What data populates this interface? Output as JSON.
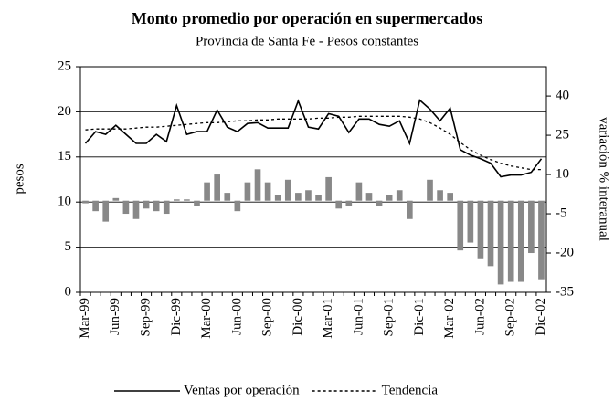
{
  "chart_data": {
    "type": "bar_line",
    "title": "Monto promedio por operación en supermercados",
    "subtitle": "Provincia de Santa Fe - Pesos constantes",
    "y_label": "pesos",
    "y2_label": "variación % interanual",
    "categories": [
      "Mar-99",
      null,
      null,
      "Jun-99",
      null,
      null,
      "Sep-99",
      null,
      null,
      "Dic-99",
      null,
      null,
      "Mar-00",
      null,
      null,
      "Jun-00",
      null,
      null,
      "Sep-00",
      null,
      null,
      "Dic-00",
      null,
      null,
      "Mar-01",
      null,
      null,
      "Jun-01",
      null,
      null,
      "Sep-01",
      null,
      null,
      "Dic-01",
      null,
      null,
      "Mar-02",
      null,
      null,
      "Jun-02",
      null,
      null,
      "Sep-02",
      null,
      null,
      "Dic-02"
    ],
    "series": [
      {
        "name": "Ventas por operación",
        "type": "line",
        "color": "#000000",
        "dash": false,
        "values": [
          16.5,
          17.8,
          17.5,
          18.5,
          17.5,
          16.5,
          16.5,
          17.5,
          16.7,
          20.7,
          17.5,
          17.8,
          17.8,
          20.2,
          18.3,
          17.8,
          18.7,
          18.8,
          18.2,
          18.2,
          18.2,
          21.2,
          18.3,
          18.1,
          19.8,
          19.5,
          17.7,
          19.2,
          19.2,
          18.6,
          18.4,
          19.0,
          16.5,
          21.3,
          20.3,
          19.0,
          20.4,
          15.8,
          15.2,
          14.8,
          14.3,
          12.8,
          13.0,
          13.0,
          13.3,
          14.8
        ]
      },
      {
        "name": "Tendencia",
        "type": "line",
        "color": "#000000",
        "dash": true,
        "values": [
          18.0,
          18.1,
          18.1,
          18.1,
          18.1,
          18.2,
          18.3,
          18.3,
          18.4,
          18.5,
          18.6,
          18.7,
          18.8,
          18.8,
          18.9,
          19.0,
          19.0,
          19.1,
          19.1,
          19.2,
          19.2,
          19.2,
          19.2,
          19.3,
          19.3,
          19.4,
          19.4,
          19.5,
          19.5,
          19.5,
          19.5,
          19.5,
          19.4,
          19.2,
          18.8,
          18.2,
          17.5,
          16.6,
          15.8,
          15.2,
          14.7,
          14.3,
          14.0,
          13.8,
          13.6,
          13.6
        ]
      },
      {
        "type": "bar",
        "axis": "y2",
        "color": "#888888",
        "values": [
          -1,
          -4,
          -8,
          1,
          -5,
          -7,
          -3,
          -4,
          -5,
          0.5,
          0.5,
          -2,
          7,
          10,
          3,
          -4,
          7,
          12,
          7,
          2,
          8,
          3,
          4,
          2,
          9,
          -3,
          -2,
          7,
          3,
          -2,
          2,
          4,
          -7,
          0,
          8,
          4,
          3,
          -19,
          -16,
          -22,
          -25,
          -32,
          -31,
          -31,
          -20,
          -30
        ]
      }
    ],
    "ylim": [
      0,
      25
    ],
    "yticks": [
      0,
      5,
      10,
      15,
      20,
      25
    ],
    "y2lim": [
      -35,
      51.2
    ],
    "y2ticks": [
      -35,
      -20,
      -5,
      10,
      25,
      40
    ],
    "grid": true,
    "legend": "bottom"
  }
}
